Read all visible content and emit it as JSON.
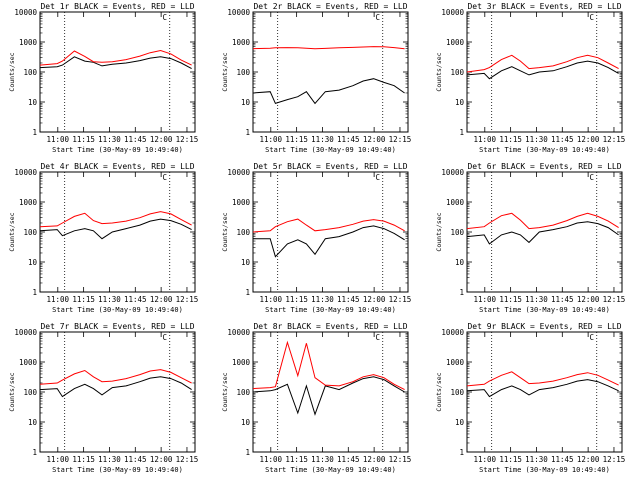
{
  "figure": {
    "colors": {
      "events": "#000000",
      "lld": "#ff0000",
      "background": "#ffffff",
      "axes": "#000000"
    },
    "ylabel": "Counts/sec",
    "xtick_labels": [
      "11:00",
      "11:15",
      "11:30",
      "11:45",
      "12:00",
      "12:15"
    ],
    "ytick_labels": [
      "1",
      "10",
      "100",
      "1000",
      "10000"
    ],
    "corner_mark": "C",
    "dotted_lines": [
      "11:04",
      "12:05"
    ]
  },
  "panels": [
    {
      "title": "Det 1r BLACK = Events, RED = LLD",
      "xlabel": "Start Time (30-May-09 10:49:40)"
    },
    {
      "title": "Det 2r BLACK = Events, RED = LLD",
      "xlabel": "Start Time (30-May-09 10:49:40)"
    },
    {
      "title": "Det 3r BLACK = Events, RED = LLD",
      "xlabel": "Start Time (30-May-09 10:49:40)"
    },
    {
      "title": "Det 4r BLACK = Events, RED = LLD",
      "xlabel": "Start Time (30-May-09 10:49:40)"
    },
    {
      "title": "Det 5r BLACK = Events, RED = LLD",
      "xlabel": "Start Time (30-May-09 10:49:40)"
    },
    {
      "title": "Det 6r BLACK = Events, RED = LLD",
      "xlabel": "Start Time (30-May-09 10:49:40)"
    },
    {
      "title": "Det 7r BLACK = Events, RED = LLD",
      "xlabel": "Start Time (30-May-09 10:49:40)"
    },
    {
      "title": "Det 8r BLACK = Events, RED = LLD",
      "xlabel": "Start Time (30-May-09 10:49:40)"
    },
    {
      "title": "Det 9r BLACK = Events, RED = LLD",
      "xlabel": "Start Time (30-May-09 10:49:40)"
    }
  ],
  "chart_data": [
    {
      "type": "line",
      "panel": 1,
      "x_unit": "minutes after 10:49:40",
      "x": [
        0,
        10,
        13,
        20,
        26,
        31,
        36,
        42,
        50,
        58,
        64,
        70,
        76,
        82,
        88
      ],
      "xlim": [
        0,
        90
      ],
      "ylim": [
        1,
        10000
      ],
      "yscale": "log",
      "grid": false,
      "series": [
        {
          "name": "Events",
          "values": [
            140,
            150,
            170,
            320,
            230,
            210,
            160,
            180,
            200,
            240,
            290,
            320,
            280,
            200,
            130
          ]
        },
        {
          "name": "LLD",
          "values": [
            170,
            190,
            230,
            500,
            330,
            220,
            210,
            220,
            260,
            340,
            440,
            520,
            400,
            250,
            170
          ]
        }
      ]
    },
    {
      "type": "line",
      "panel": 2,
      "x_unit": "minutes after 10:49:40",
      "x": [
        0,
        10,
        13,
        20,
        26,
        31,
        36,
        42,
        50,
        58,
        64,
        70,
        76,
        82,
        88
      ],
      "xlim": [
        0,
        90
      ],
      "ylim": [
        1,
        10000
      ],
      "yscale": "log",
      "grid": false,
      "series": [
        {
          "name": "Events",
          "values": [
            20,
            22,
            9,
            12,
            15,
            22,
            9,
            22,
            25,
            35,
            50,
            60,
            45,
            35,
            20
          ]
        },
        {
          "name": "LLD",
          "values": [
            600,
            620,
            640,
            650,
            640,
            620,
            600,
            610,
            640,
            660,
            680,
            700,
            690,
            650,
            600
          ]
        }
      ]
    },
    {
      "type": "line",
      "panel": 3,
      "x_unit": "minutes after 10:49:40",
      "x": [
        0,
        10,
        13,
        20,
        26,
        31,
        36,
        42,
        50,
        58,
        64,
        70,
        76,
        82,
        88
      ],
      "xlim": [
        0,
        90
      ],
      "ylim": [
        1,
        10000
      ],
      "yscale": "log",
      "grid": false,
      "series": [
        {
          "name": "Events",
          "values": [
            80,
            90,
            60,
            110,
            150,
            110,
            80,
            100,
            110,
            150,
            200,
            230,
            200,
            140,
            90
          ]
        },
        {
          "name": "LLD",
          "values": [
            100,
            120,
            140,
            260,
            360,
            230,
            130,
            140,
            160,
            220,
            300,
            360,
            300,
            200,
            130
          ]
        }
      ]
    },
    {
      "type": "line",
      "panel": 4,
      "x_unit": "minutes after 10:49:40",
      "x": [
        0,
        10,
        13,
        20,
        26,
        31,
        36,
        42,
        50,
        58,
        64,
        70,
        76,
        82,
        88
      ],
      "xlim": [
        0,
        90
      ],
      "ylim": [
        1,
        10000
      ],
      "yscale": "log",
      "grid": false,
      "series": [
        {
          "name": "Events",
          "values": [
            110,
            120,
            75,
            110,
            130,
            110,
            60,
            100,
            130,
            170,
            230,
            270,
            240,
            180,
            120
          ]
        },
        {
          "name": "LLD",
          "values": [
            150,
            160,
            200,
            330,
            420,
            240,
            190,
            200,
            230,
            300,
            400,
            480,
            400,
            260,
            170
          ]
        }
      ]
    },
    {
      "type": "line",
      "panel": 5,
      "x_unit": "minutes after 10:49:40",
      "x": [
        0,
        10,
        13,
        20,
        26,
        31,
        36,
        42,
        50,
        58,
        64,
        70,
        76,
        82,
        88
      ],
      "xlim": [
        0,
        90
      ],
      "ylim": [
        1,
        10000
      ],
      "yscale": "log",
      "grid": false,
      "series": [
        {
          "name": "Events",
          "values": [
            60,
            60,
            15,
            40,
            55,
            40,
            18,
            60,
            70,
            100,
            140,
            160,
            130,
            90,
            55
          ]
        },
        {
          "name": "LLD",
          "values": [
            100,
            110,
            150,
            220,
            270,
            170,
            110,
            120,
            140,
            180,
            230,
            260,
            230,
            170,
            110
          ]
        }
      ]
    },
    {
      "type": "line",
      "panel": 6,
      "x_unit": "minutes after 10:49:40",
      "x": [
        0,
        10,
        13,
        20,
        26,
        31,
        36,
        42,
        50,
        58,
        64,
        70,
        76,
        82,
        88
      ],
      "xlim": [
        0,
        90
      ],
      "ylim": [
        1,
        10000
      ],
      "yscale": "log",
      "grid": false,
      "series": [
        {
          "name": "Events",
          "values": [
            70,
            80,
            40,
            80,
            100,
            80,
            45,
            100,
            120,
            150,
            200,
            220,
            190,
            140,
            80
          ]
        },
        {
          "name": "LLD",
          "values": [
            130,
            150,
            200,
            350,
            420,
            250,
            130,
            140,
            170,
            240,
            330,
            420,
            330,
            230,
            140
          ]
        }
      ]
    },
    {
      "type": "line",
      "panel": 7,
      "x_unit": "minutes after 10:49:40",
      "x": [
        0,
        10,
        13,
        20,
        26,
        31,
        36,
        42,
        50,
        58,
        64,
        70,
        76,
        82,
        88
      ],
      "xlim": [
        0,
        90
      ],
      "ylim": [
        1,
        10000
      ],
      "yscale": "log",
      "grid": false,
      "series": [
        {
          "name": "Events",
          "values": [
            120,
            130,
            70,
            130,
            180,
            130,
            80,
            140,
            160,
            220,
            290,
            320,
            280,
            200,
            120
          ]
        },
        {
          "name": "LLD",
          "values": [
            180,
            200,
            250,
            400,
            520,
            320,
            220,
            230,
            280,
            380,
            500,
            560,
            450,
            300,
            200
          ]
        }
      ]
    },
    {
      "type": "line",
      "panel": 8,
      "x_unit": "minutes after 10:49:40",
      "x": [
        0,
        10,
        13,
        20,
        26,
        31,
        36,
        42,
        50,
        58,
        64,
        70,
        76,
        82,
        88
      ],
      "xlim": [
        0,
        90
      ],
      "ylim": [
        1,
        10000
      ],
      "yscale": "log",
      "grid": false,
      "series": [
        {
          "name": "Events",
          "values": [
            100,
            110,
            120,
            180,
            20,
            160,
            18,
            160,
            120,
            200,
            280,
            320,
            260,
            160,
            100
          ]
        },
        {
          "name": "LLD",
          "values": [
            130,
            140,
            150,
            4500,
            350,
            4200,
            300,
            170,
            160,
            220,
            320,
            380,
            300,
            180,
            120
          ]
        }
      ]
    },
    {
      "type": "line",
      "panel": 9,
      "x_unit": "minutes after 10:49:40",
      "x": [
        0,
        10,
        13,
        20,
        26,
        31,
        36,
        42,
        50,
        58,
        64,
        70,
        76,
        82,
        88
      ],
      "xlim": [
        0,
        90
      ],
      "ylim": [
        1,
        10000
      ],
      "yscale": "log",
      "grid": false,
      "series": [
        {
          "name": "Events",
          "values": [
            110,
            120,
            70,
            120,
            160,
            120,
            80,
            120,
            140,
            180,
            230,
            260,
            220,
            160,
            110
          ]
        },
        {
          "name": "LLD",
          "values": [
            160,
            180,
            230,
            360,
            470,
            300,
            190,
            200,
            230,
            300,
            380,
            440,
            360,
            250,
            170
          ]
        }
      ]
    }
  ]
}
